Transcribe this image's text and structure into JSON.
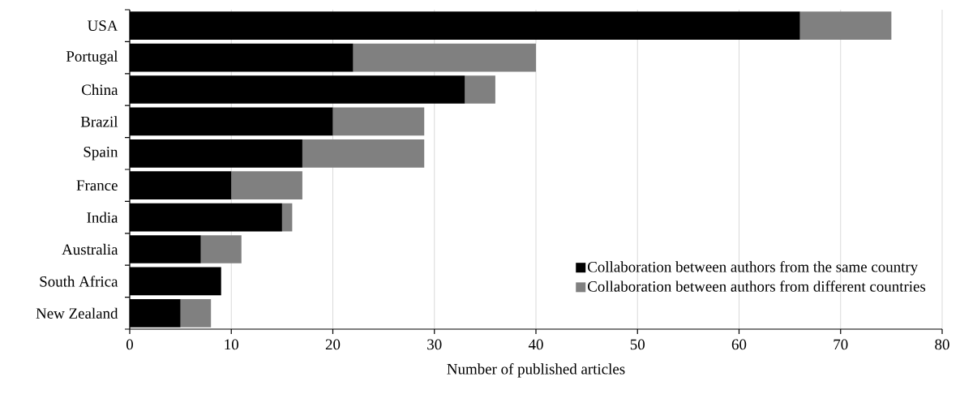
{
  "chart_data": {
    "type": "bar",
    "orientation": "horizontal",
    "stacked": true,
    "categories": [
      "USA",
      "Portugal",
      "China",
      "Brazil",
      "Spain",
      "France",
      "India",
      "Australia",
      "South Africa",
      "New Zealand"
    ],
    "series": [
      {
        "name": "Collaboration between authors from the same country",
        "color": "#000000",
        "values": [
          66,
          22,
          33,
          20,
          17,
          10,
          15,
          7,
          9,
          5
        ]
      },
      {
        "name": "Collaboration between authors from different countries",
        "color": "#808080",
        "values": [
          9,
          18,
          3,
          9,
          12,
          7,
          1,
          4,
          0,
          3
        ]
      }
    ],
    "xlabel": "Number of published articles",
    "xlim": [
      0,
      80
    ],
    "xticks": [
      0,
      10,
      20,
      30,
      40,
      50,
      60,
      70,
      80
    ],
    "grid": "x",
    "legend": "bottom right"
  }
}
